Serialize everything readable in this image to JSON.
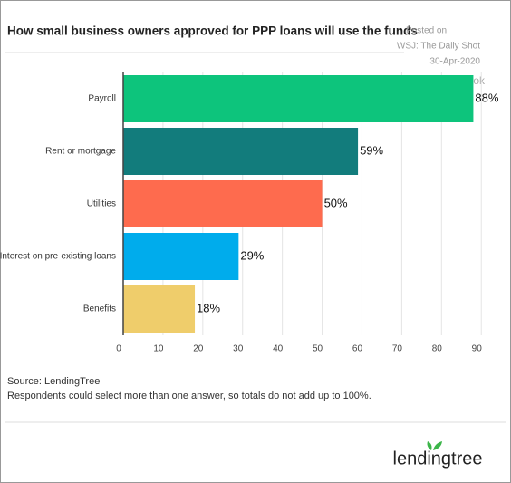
{
  "chart_data": {
    "type": "bar",
    "orientation": "horizontal",
    "title": "How small business owners approved for PPP loans will use the funds",
    "categories": [
      "Payroll",
      "Rent or mortgage",
      "Utilities",
      "Interest on pre-existing loans",
      "Benefits"
    ],
    "values": [
      88,
      59,
      50,
      29,
      18
    ],
    "value_labels": [
      "88%",
      "59%",
      "50%",
      "29%",
      "18%"
    ],
    "colors": [
      "#0dc47c",
      "#127c7c",
      "#fe6b4e",
      "#00acec",
      "#efcd6b"
    ],
    "xlim": [
      0,
      92
    ],
    "xticks": [
      0,
      10,
      20,
      30,
      40,
      50,
      60,
      70,
      80,
      90
    ],
    "grid": true,
    "posted": [
      "Posted on",
      "WSJ: The Daily Shot",
      "30-Apr-2020",
      "@SoberLook"
    ],
    "source": "Source: LendingTree",
    "note": "Respondents could select more than one answer, so totals do not add up to 100%.",
    "logo": "lendingtree"
  }
}
